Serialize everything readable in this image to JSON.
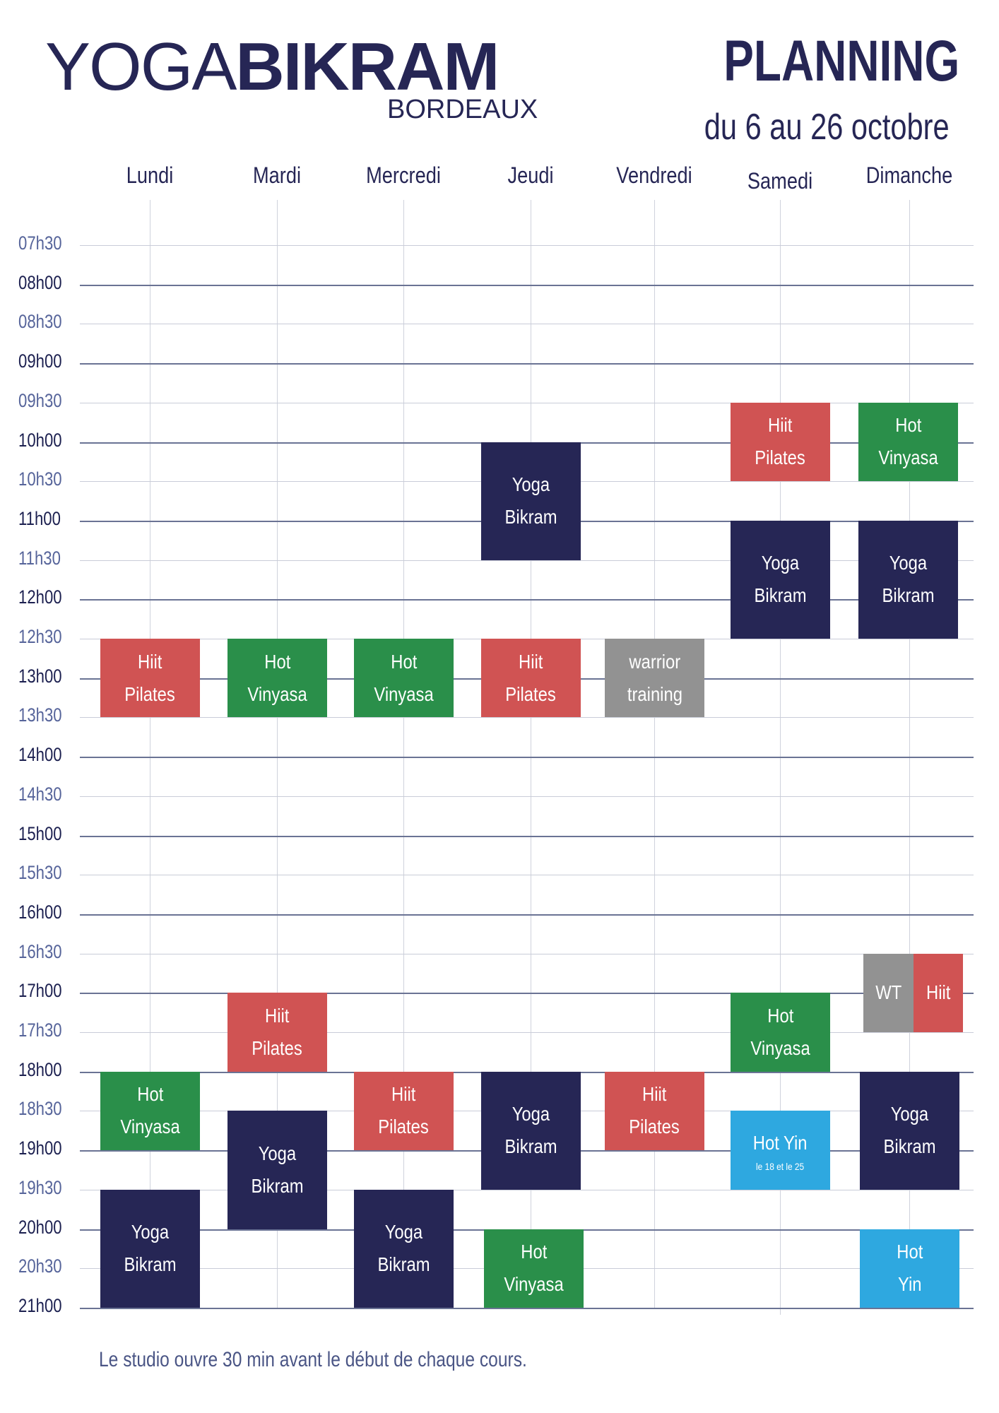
{
  "logo": {
    "word1": "YOGA",
    "word2": "BIKRAM",
    "city": "BORDEAUX"
  },
  "title": "PLANNING",
  "subtitle": "du 6 au 26 octobre",
  "days": [
    "Lundi",
    "Mardi",
    "Mercredi",
    "Jeudi",
    "Vendredi",
    "Samedi",
    "Dimanche"
  ],
  "times": [
    "07h30",
    "08h00",
    "08h30",
    "09h00",
    "09h30",
    "10h00",
    "10h30",
    "11h00",
    "11h30",
    "12h00",
    "12h30",
    "13h00",
    "13h30",
    "14h00",
    "14h30",
    "15h00",
    "15h30",
    "16h00",
    "16h30",
    "17h00",
    "17h30",
    "18h00",
    "18h30",
    "19h00",
    "19h30",
    "20h00",
    "20h30",
    "21h00"
  ],
  "classes": [
    {
      "lines": [
        "Hiit",
        "Pilates"
      ]
    },
    {
      "lines": [
        "Hot",
        "Vinyasa"
      ]
    },
    {
      "lines": [
        "Yoga",
        "Bikram"
      ]
    },
    {
      "lines": [
        "Hot",
        "Vinyasa"
      ]
    },
    {
      "lines": [
        "Hiit",
        "Pilates"
      ]
    },
    {
      "lines": [
        "Yoga",
        "Bikram"
      ]
    },
    {
      "lines": [
        "Hot",
        "Vinyasa"
      ]
    },
    {
      "lines": [
        "Hiit",
        "Pilates"
      ]
    },
    {
      "lines": [
        "Yoga",
        "Bikram"
      ]
    },
    {
      "lines": [
        "Yoga",
        "Bikram"
      ]
    },
    {
      "lines": [
        "Hiit",
        "Pilates"
      ]
    },
    {
      "lines": [
        "Yoga",
        "Bikram"
      ]
    },
    {
      "lines": [
        "Hot",
        "Vinyasa"
      ]
    },
    {
      "lines": [
        "warrior",
        "training"
      ]
    },
    {
      "lines": [
        "Hiit",
        "Pilates"
      ]
    },
    {
      "lines": [
        "Hiit",
        "Pilates"
      ]
    },
    {
      "lines": [
        "Yoga",
        "Bikram"
      ]
    },
    {
      "lines": [
        "Hot",
        "Vinyasa"
      ]
    },
    {
      "lines": [
        "Hot Yin"
      ],
      "note": "le 18 et le 25"
    },
    {
      "lines": [
        "Hot",
        "Vinyasa"
      ]
    },
    {
      "lines": [
        "Yoga",
        "Bikram"
      ]
    },
    {
      "lines": [
        "WT"
      ]
    },
    {
      "lines": [
        "Hiit"
      ]
    },
    {
      "lines": [
        "Yoga",
        "Bikram"
      ]
    },
    {
      "lines": [
        "Hot",
        "Yin"
      ]
    }
  ],
  "footer": "Le studio ouvre 30 min avant le début de chaque cours."
}
